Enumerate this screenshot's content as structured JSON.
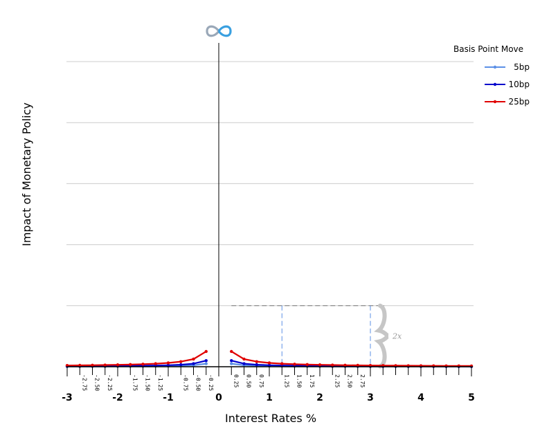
{
  "chart_data": {
    "type": "line",
    "xlabel": "Interest Rates %",
    "ylabel": "Impact of Monetary Policy",
    "legend_title": "Basis Point Move",
    "legend_position": "top-right",
    "xlim": [
      -3,
      5
    ],
    "ylim": [
      0,
      500
    ],
    "grid": true,
    "major_x_ticks": [
      "-3",
      "-2",
      "-1",
      "0",
      "1",
      "2",
      "3",
      "4",
      "5"
    ],
    "minor_x_ticks": [
      "-2.75",
      "-2.50",
      "-2.25",
      "-1.75",
      "-1.50",
      "-1.25",
      "-0.75",
      "-0.50",
      "-0.25",
      "0.25",
      "0.50",
      "0.75",
      "1.25",
      "1.50",
      "1.75",
      "2.25",
      "2.50",
      "2.75"
    ],
    "annotation": "2x",
    "colors": {
      "5bp": "#5b8fe6",
      "10bp": "#0000cc",
      "25bp": "#e00000"
    },
    "series": [
      {
        "name": "5bp",
        "color": "#5b8fe6",
        "multiplier": 5
      },
      {
        "name": "10bp",
        "color": "#0000cc",
        "multiplier": 10
      },
      {
        "name": "25bp",
        "color": "#e00000",
        "multiplier": 25
      }
    ],
    "x_values_negative": [
      -3,
      -2.75,
      -2.5,
      -2.25,
      -2,
      -1.75,
      -1.5,
      -1.25,
      -1,
      -0.75,
      -0.5,
      -0.25
    ],
    "x_values_positive": [
      0.25,
      0.5,
      0.75,
      1,
      1.25,
      1.5,
      1.75,
      2,
      2.25,
      2.5,
      2.75,
      3,
      3.25,
      3.5,
      3.75,
      4,
      4.25,
      4.5,
      4.75,
      5
    ],
    "formula": "y = multiplier * 0.25 / |x|"
  }
}
